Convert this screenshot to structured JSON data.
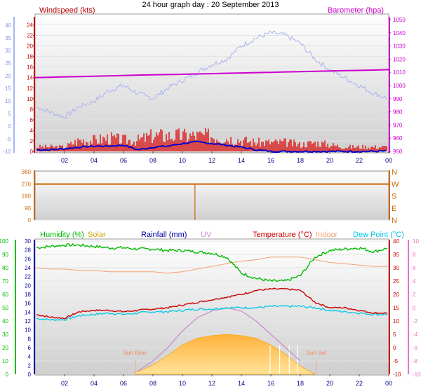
{
  "title": "24 hour graph day : 20 September 2013",
  "colors": {
    "wind_speed": "#dd0000",
    "wind_avg": "#0000cc",
    "gust_temp_axis_hint": "#bb0000",
    "barometer": "#cc00cc",
    "bar_line_light": "#aab4f2",
    "direction": "#cc6600",
    "humidity": "#00bb00",
    "solar": "#ccaa00",
    "solar_fill": "#ffc34d",
    "rainfall": "#0000aa",
    "uv": "#cc88cc",
    "temperature": "#cc0000",
    "indoor": "#f4a070",
    "dew_point": "#00c8e8",
    "panel_bg_top": "#ffffff",
    "panel_bg_bottom": "#cfcfcf"
  },
  "chart_data": [
    {
      "type": "line",
      "panel": "wind-barometer",
      "title": "",
      "left_axis_title": "Windspeed (kts)",
      "right_axis_title": "Barometer (hpa)",
      "x_ticks": [
        "02",
        "04",
        "06",
        "08",
        "10",
        "12",
        "14",
        "16",
        "18",
        "20",
        "22",
        "00"
      ],
      "left_ticks_red": [
        "0",
        "2",
        "4",
        "6",
        "8",
        "10",
        "12",
        "14",
        "16",
        "18",
        "20",
        "22",
        "24"
      ],
      "left_ticks_blue": [
        "-10",
        "-5",
        "0",
        "5",
        "10",
        "15",
        "20",
        "25",
        "30",
        "35",
        "40"
      ],
      "right_ticks": [
        "950",
        "960",
        "970",
        "980",
        "990",
        "1000",
        "1010",
        "1020",
        "1030",
        "1040",
        "1050"
      ],
      "ylim_speed": [
        0,
        25
      ],
      "ylim_pressure": [
        950,
        1050
      ],
      "x_hours": [
        0,
        1,
        2,
        3,
        4,
        5,
        6,
        7,
        8,
        9,
        10,
        11,
        12,
        13,
        14,
        15,
        16,
        17,
        18,
        19,
        20,
        21,
        22,
        23,
        24
      ],
      "series": [
        {
          "name": "Windspeed (kts)",
          "axis": "speed",
          "values": [
            1,
            1,
            1,
            2.5,
            2.5,
            3,
            2.5,
            2.5,
            3.5,
            3.5,
            3.5,
            3.5,
            3.5,
            3,
            2.5,
            2,
            2,
            2,
            1.5,
            2,
            1.5,
            1,
            1,
            1,
            1
          ]
        },
        {
          "name": "",
          "axis": "speed",
          "values": [
            0.3,
            0.3,
            0.5,
            0.8,
            1,
            1,
            1.2,
            0.3,
            0.8,
            1,
            1.5,
            1.8,
            1.5,
            1.2,
            0.8,
            0.3,
            0,
            0,
            0,
            0,
            0,
            0,
            0,
            0,
            0.1
          ]
        },
        {
          "name": "Barometer (hpa)",
          "axis": "pressure",
          "values": [
            1006,
            1006.3,
            1006.6,
            1006.8,
            1007,
            1007.3,
            1007.6,
            1007.9,
            1008.1,
            1008.3,
            1008.5,
            1008.8,
            1009,
            1009.3,
            1009.5,
            1009.8,
            1010,
            1010.3,
            1010.5,
            1010.8,
            1011,
            1011.3,
            1011.5,
            1011.7,
            1012
          ]
        },
        {
          "name": "",
          "axis": "lightblue",
          "values": [
            8.5,
            7.5,
            6.5,
            8.5,
            9.5,
            11.5,
            12.5,
            11,
            10,
            12,
            13.5,
            15,
            16.5,
            17.5,
            20,
            21.5,
            22.5,
            22,
            20.5,
            17.5,
            15.5,
            14,
            12.5,
            11,
            10
          ]
        }
      ]
    },
    {
      "type": "line",
      "panel": "wind-direction",
      "left_ticks": [
        "0",
        "90",
        "180",
        "270",
        "360"
      ],
      "right_ticks": [
        "N",
        "E",
        "S",
        "W",
        "N"
      ],
      "ylim": [
        0,
        360
      ],
      "series": [
        {
          "name": "",
          "values": [
            268,
            268,
            268,
            268,
            268,
            268,
            268,
            268,
            268,
            268,
            268,
            268,
            268,
            268,
            268,
            268,
            268,
            268,
            268,
            268,
            268,
            268,
            268,
            268,
            268
          ]
        }
      ],
      "spike_hour": 10.85
    },
    {
      "type": "line",
      "panel": "temperature-humidity",
      "legend": [
        "Humidity (%)",
        "Solar",
        "Rainfall (mm)",
        "UV",
        "Temperature (°C)",
        "Indoor",
        "Dew Point (°C)"
      ],
      "sunrise_label": "Sun Rise",
      "sunset_label": "Sun Set",
      "sunrise_hour": 6.8,
      "sunset_hour": 19.1,
      "ticks_humidity": [
        "0",
        "10",
        "20",
        "30",
        "40",
        "50",
        "60",
        "70",
        "80",
        "90",
        "100"
      ],
      "ticks_rain": [
        "0",
        "2",
        "4",
        "6",
        "8",
        "10",
        "12",
        "14",
        "16",
        "18",
        "20",
        "22",
        "24",
        "26",
        "28",
        "30"
      ],
      "ticks_temp": [
        "-10",
        "-5",
        "0",
        "5",
        "10",
        "15",
        "20",
        "25",
        "30",
        "35",
        "40"
      ],
      "ticks_uv": [
        "-10",
        "-8",
        "-6",
        "-4",
        "-2",
        "0",
        "2",
        "4",
        "6",
        "8",
        "10"
      ],
      "ylim_humidity": [
        0,
        100
      ],
      "ylim_temp": [
        -10,
        40
      ],
      "ylim_uv": [
        -10,
        10
      ],
      "series": [
        {
          "name": "Humidity (%)",
          "axis": "humidity",
          "values": [
            95,
            96,
            97,
            97,
            96,
            95,
            95,
            94,
            94,
            93,
            93,
            92,
            91,
            88,
            76,
            72,
            70,
            70,
            74,
            88,
            93,
            94,
            95,
            92,
            95
          ]
        },
        {
          "name": "Temperature (°C)",
          "axis": "temp",
          "values": [
            12.5,
            11.5,
            11,
            13.5,
            14,
            14,
            13.5,
            14,
            14.5,
            15,
            16,
            17,
            18,
            19,
            20,
            21.5,
            22,
            22,
            21.5,
            17,
            15,
            15,
            14,
            13,
            13
          ]
        },
        {
          "name": "Dew Point (°C)",
          "axis": "temp",
          "values": [
            11,
            10.5,
            10.5,
            12,
            12.5,
            13,
            12.5,
            13,
            13.5,
            13.5,
            14,
            14.5,
            14.5,
            15,
            15,
            15,
            15.5,
            15.5,
            15.5,
            15,
            14,
            13.5,
            13,
            12.5,
            12.5
          ]
        },
        {
          "name": "Indoor",
          "axis": "temp",
          "values": [
            30,
            29.5,
            29.5,
            29,
            29,
            28.5,
            28.5,
            28.5,
            28.5,
            28,
            28.5,
            29.5,
            30.5,
            31.5,
            32.5,
            33,
            34,
            34,
            34,
            33,
            32,
            31.5,
            31,
            30.5,
            30.5
          ]
        },
        {
          "name": "UV",
          "axis": "uv",
          "values": [
            null,
            null,
            null,
            null,
            null,
            null,
            null,
            -9.5,
            -8,
            -6,
            -3.5,
            -1.5,
            -0.5,
            0,
            -0.5,
            -2,
            -4,
            -6,
            -8,
            null,
            null,
            null,
            null,
            null,
            null
          ]
        },
        {
          "name": "Solar",
          "axis": "humidity",
          "values": [
            0,
            0,
            0,
            0,
            0,
            0,
            0,
            2,
            7,
            14,
            22,
            27,
            29,
            30,
            29,
            27,
            22,
            15,
            6,
            0,
            0,
            0,
            0,
            0,
            0
          ]
        }
      ]
    }
  ]
}
